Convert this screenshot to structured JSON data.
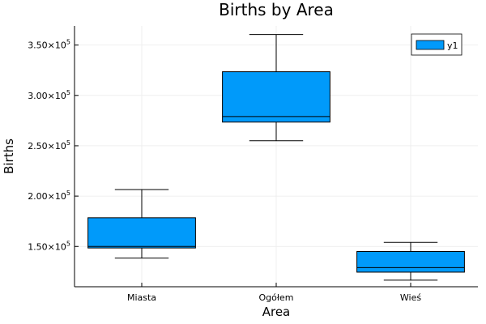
{
  "chart_data": {
    "type": "box",
    "title": "Births by Area",
    "xlabel": "Area",
    "ylabel": "Births",
    "categories": [
      "Miasta",
      "Ogółem",
      "Wieś"
    ],
    "boxes": [
      {
        "category": "Miasta",
        "min": 138500,
        "q1": 148500,
        "median": 150000,
        "q3": 178500,
        "max": 206500
      },
      {
        "category": "Ogółem",
        "min": 255000,
        "q1": 273500,
        "median": 279000,
        "q3": 323500,
        "max": 360500
      },
      {
        "category": "Wieś",
        "min": 116500,
        "q1": 124500,
        "median": 129000,
        "q3": 145000,
        "max": 154000
      }
    ],
    "ylim": [
      110000,
      369000
    ],
    "yticks": [
      {
        "value": 150000,
        "mantissa": "1.50"
      },
      {
        "value": 200000,
        "mantissa": "2.00"
      },
      {
        "value": 250000,
        "mantissa": "2.50"
      },
      {
        "value": 300000,
        "mantissa": "3.00"
      },
      {
        "value": 350000,
        "mantissa": "3.50"
      }
    ],
    "tick_multiplier": "×10",
    "tick_exponent": "5",
    "legend": {
      "label": "y1",
      "position": "top-right"
    },
    "grid": true,
    "colors": {
      "box": "#009AFA",
      "stroke": "#000000",
      "grid": "#EBEBEB",
      "axis": "#000000"
    }
  }
}
